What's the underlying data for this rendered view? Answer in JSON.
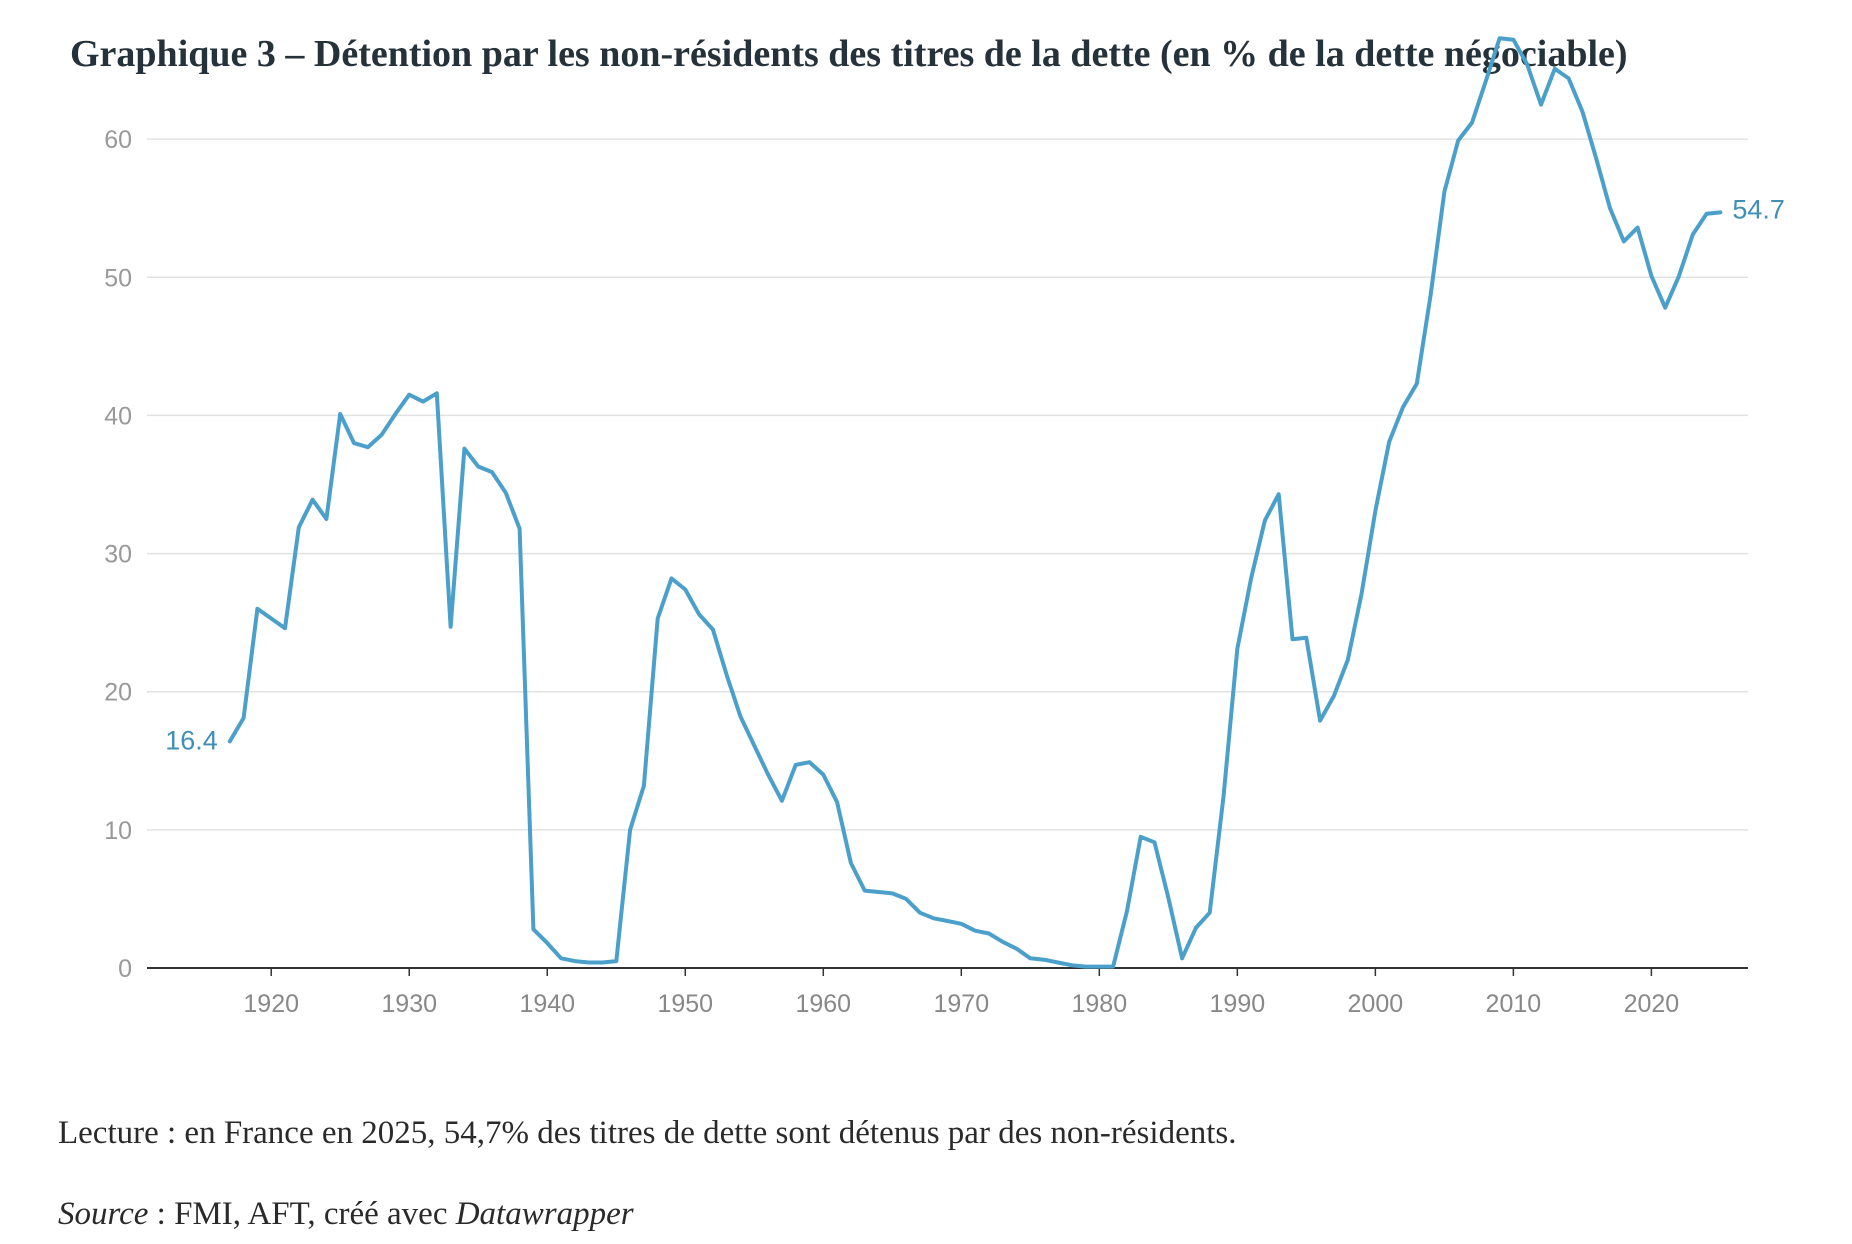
{
  "title": "Graphique 3 – Détention par les non-résidents des titres de la dette (en % de la dette négociable)",
  "reading_note": "Lecture : en France en 2025, 54,7% des titres de dette sont détenus par des non-résidents.",
  "source": {
    "label": "Source",
    "text": " : FMI, AFT, créé avec ",
    "tool": "Datawrapper"
  },
  "colors": {
    "line": "#4aa0cb",
    "label": "#3f8fb6",
    "grid": "#e2e2e2",
    "axis": "#333333"
  },
  "chart_data": {
    "type": "line",
    "title": "",
    "xlabel": "",
    "ylabel": "",
    "xlim": [
      1911,
      2027
    ],
    "ylim": [
      0,
      70
    ],
    "y_ticks": [
      0,
      10,
      20,
      30,
      40,
      50,
      60
    ],
    "x_ticks": [
      1920,
      1930,
      1940,
      1950,
      1960,
      1970,
      1980,
      1990,
      2000,
      2010,
      2020
    ],
    "grid": true,
    "legend": "none",
    "series": [
      {
        "x": [
          1917,
          1918,
          1919,
          1920,
          1921,
          1922,
          1923,
          1924,
          1925,
          1926,
          1927,
          1928,
          1929,
          1930,
          1931,
          1932,
          1933,
          1934,
          1935,
          1936,
          1937,
          1938,
          1939,
          1940,
          1941,
          1942,
          1943,
          1944,
          1945,
          1946,
          1947,
          1948,
          1949,
          1950,
          1951,
          1952,
          1953,
          1954,
          1955,
          1956,
          1957,
          1958,
          1959,
          1960,
          1961,
          1962,
          1963,
          1964,
          1965,
          1966,
          1967,
          1968,
          1969,
          1970,
          1971,
          1972,
          1973,
          1974,
          1975,
          1976,
          1977,
          1978,
          1979,
          1980,
          1981,
          1982,
          1983,
          1984,
          1985,
          1986,
          1987,
          1988,
          1989,
          1990,
          1991,
          1992,
          1993,
          1994,
          1995,
          1996,
          1997,
          1998,
          1999,
          2000,
          2001,
          2002,
          2003,
          2004,
          2005,
          2006,
          2007,
          2008,
          2009,
          2010,
          2011,
          2012,
          2013,
          2014,
          2015,
          2016,
          2017,
          2018,
          2019,
          2020,
          2021,
          2022,
          2023,
          2024,
          2025
        ],
        "y": [
          16.4,
          18.1,
          26.0,
          25.3,
          24.6,
          31.9,
          33.9,
          32.5,
          40.1,
          38.0,
          37.7,
          38.6,
          40.1,
          41.5,
          41.0,
          41.6,
          24.7,
          37.6,
          36.3,
          35.9,
          34.4,
          31.8,
          2.8,
          1.8,
          0.7,
          0.5,
          0.4,
          0.4,
          0.5,
          10.0,
          13.2,
          25.3,
          28.2,
          27.4,
          25.6,
          24.5,
          21.2,
          18.2,
          16.1,
          14.0,
          12.1,
          14.7,
          14.9,
          14.0,
          12.0,
          7.6,
          5.6,
          5.5,
          5.4,
          5.0,
          4.0,
          3.6,
          3.4,
          3.2,
          2.7,
          2.5,
          1.9,
          1.4,
          0.7,
          0.6,
          0.4,
          0.2,
          0.1,
          0.1,
          0.1,
          4.1,
          9.5,
          9.1,
          5.1,
          0.7,
          2.9,
          4.0,
          12.4,
          23.1,
          28.2,
          32.4,
          34.3,
          23.8,
          23.9,
          17.9,
          19.7,
          22.3,
          27.1,
          33.1,
          38.1,
          40.6,
          42.3,
          48.7,
          56.2,
          59.9,
          61.2,
          64.2,
          67.3,
          67.2,
          65.4,
          62.5,
          65.1,
          64.4,
          62.0,
          58.6,
          55.0,
          52.6,
          53.6,
          50.1,
          47.8,
          50.1,
          53.1,
          54.6,
          54.7
        ],
        "start_label": "16.4",
        "end_label": "54.7"
      }
    ]
  }
}
